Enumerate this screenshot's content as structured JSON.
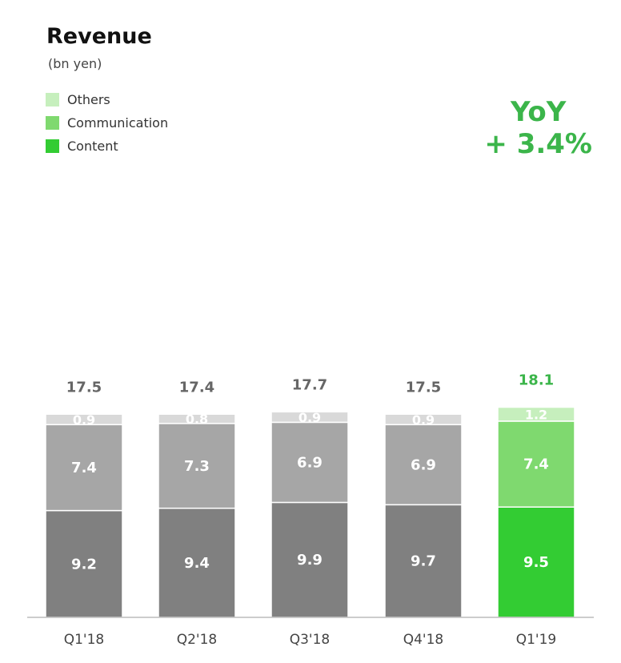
{
  "title": "Revenue",
  "subtitle": "(bn yen)",
  "yoy": {
    "label": "YoY",
    "value": "+ 3.4%"
  },
  "colors": {
    "gray": {
      "Content": "#808080",
      "Communication": "#a6a6a6",
      "Others": "#d9d9d9"
    },
    "green": {
      "Content": "#33cc33",
      "Communication": "#7fd96f",
      "Others": "#c6efbd"
    },
    "legend": {
      "Others": "#c6efbd",
      "Communication": "#7fd96f",
      "Content": "#33cc33"
    },
    "total_gray": "#666666",
    "total_green": "#3bb54a",
    "axis": "#bbbbbb"
  },
  "chart_data": {
    "type": "bar",
    "stacked": true,
    "title": "Revenue",
    "ylabel": "(bn yen)",
    "categories": [
      "Q1'18",
      "Q2'18",
      "Q3'18",
      "Q4'18",
      "Q1'19"
    ],
    "series": [
      {
        "name": "Content",
        "values": [
          9.2,
          9.4,
          9.9,
          9.7,
          9.5
        ]
      },
      {
        "name": "Communication",
        "values": [
          7.4,
          7.3,
          6.9,
          6.9,
          7.4
        ]
      },
      {
        "name": "Others",
        "values": [
          0.9,
          0.8,
          0.9,
          0.9,
          1.2
        ]
      }
    ],
    "totals": [
      "17.5",
      "17.4",
      "17.7",
      "17.5",
      "18.1"
    ],
    "legend_order": [
      "Others",
      "Communication",
      "Content"
    ],
    "highlight_category": "Q1'19",
    "legend_position": "top-left",
    "grid": false
  }
}
